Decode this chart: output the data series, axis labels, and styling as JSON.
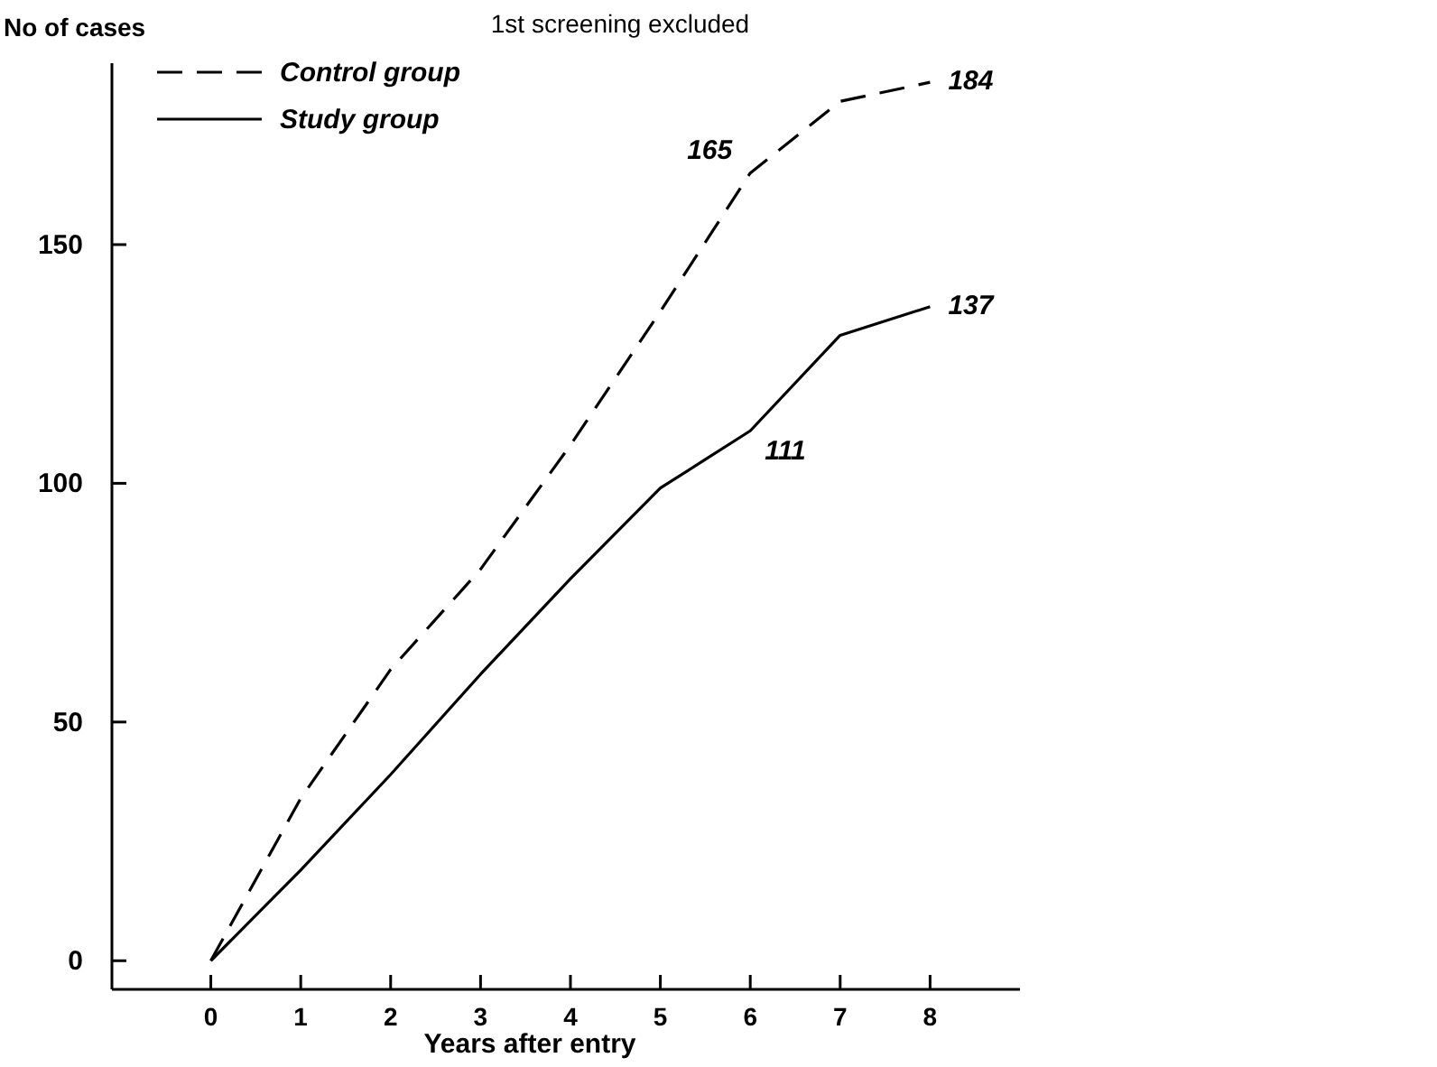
{
  "chart_data": {
    "type": "line",
    "title": "1st screening excluded",
    "xlabel": "Years after entry",
    "ylabel": "No of cases",
    "x": [
      0,
      1,
      2,
      3,
      4,
      5,
      6,
      7,
      8
    ],
    "series": [
      {
        "name": "Control group",
        "color": "#000000",
        "line_style": "dashed",
        "values": [
          0,
          34,
          61,
          82,
          108,
          136,
          165,
          180,
          184
        ],
        "value_labels": [
          null,
          null,
          null,
          null,
          null,
          null,
          "165",
          null,
          "184"
        ]
      },
      {
        "name": "Study group",
        "color": "#000000",
        "line_style": "solid",
        "values": [
          0,
          19,
          39,
          60,
          80,
          99,
          111,
          131,
          137
        ],
        "value_labels": [
          null,
          null,
          null,
          null,
          null,
          null,
          "111",
          null,
          "137"
        ]
      }
    ],
    "xlim": [
      -1.1,
      9
    ],
    "xticks": [
      0,
      1,
      2,
      3,
      4,
      5,
      6,
      7,
      8
    ],
    "ylim": [
      -6,
      188
    ],
    "yticks": [
      0,
      50,
      100,
      150
    ],
    "legend": "top left",
    "grid": false,
    "marker": "none"
  }
}
